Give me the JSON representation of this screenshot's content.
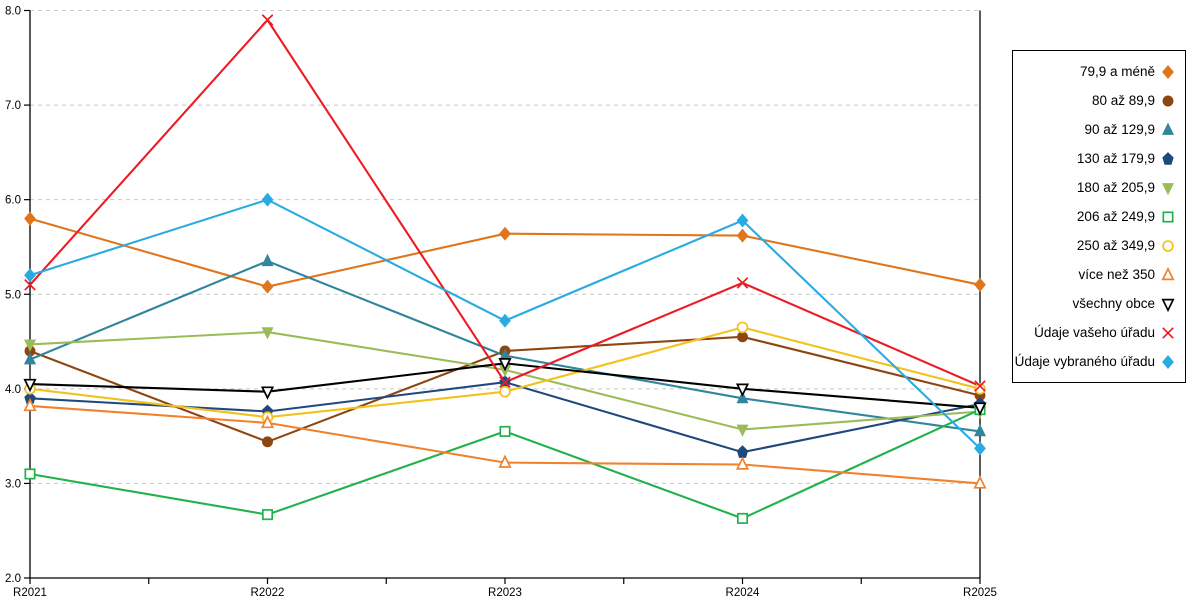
{
  "chart_data": {
    "type": "line",
    "title": "",
    "xlabel": "",
    "ylabel": "",
    "categories": [
      "R2021",
      "R2022",
      "R2023",
      "R2024",
      "R2025"
    ],
    "ylim": [
      2.0,
      8.0
    ],
    "ytick_labels": [
      "2.0",
      "3.0",
      "4.0",
      "5.0",
      "6.0",
      "7.0",
      "8.0"
    ],
    "grid": true,
    "legend_position": "right",
    "series": [
      {
        "name": "79,9 a méně",
        "color": "#E0751C",
        "marker": "diamond",
        "filled": true,
        "values": [
          5.8,
          5.08,
          5.64,
          5.62,
          5.1
        ]
      },
      {
        "name": "80 až 89,9",
        "color": "#8E4611",
        "marker": "circle",
        "filled": true,
        "values": [
          4.4,
          3.44,
          4.4,
          4.55,
          3.93
        ]
      },
      {
        "name": "90 až 129,9",
        "color": "#31859C",
        "marker": "triangle-up",
        "filled": true,
        "values": [
          4.31,
          5.35,
          4.35,
          3.9,
          3.55
        ]
      },
      {
        "name": "130 až 179,9",
        "color": "#1F497D",
        "marker": "pentagon",
        "filled": true,
        "values": [
          3.9,
          3.76,
          4.07,
          3.33,
          3.84
        ]
      },
      {
        "name": "180 až 205,9",
        "color": "#9BBB59",
        "marker": "triangle-down",
        "filled": true,
        "values": [
          4.47,
          4.6,
          4.2,
          3.57,
          3.76
        ]
      },
      {
        "name": "206 až 249,9",
        "color": "#22B14C",
        "marker": "square",
        "filled": false,
        "values": [
          3.1,
          2.67,
          3.55,
          2.63,
          3.78
        ]
      },
      {
        "name": "250 až 349,9",
        "color": "#F3C11B",
        "marker": "circle",
        "filled": false,
        "values": [
          4.0,
          3.7,
          3.97,
          4.65,
          4.0
        ]
      },
      {
        "name": "více než 350",
        "color": "#F0822D",
        "marker": "triangle-up",
        "filled": false,
        "values": [
          3.82,
          3.64,
          3.22,
          3.2,
          3.0
        ]
      },
      {
        "name": "všechny obce",
        "color": "#000000",
        "marker": "triangle-down",
        "filled": false,
        "values": [
          4.05,
          3.97,
          4.27,
          4.0,
          3.8
        ]
      },
      {
        "name": "Údaje vašeho úřadu",
        "color": "#ED1C24",
        "marker": "x",
        "filled": false,
        "values": [
          5.1,
          7.9,
          4.07,
          5.12,
          4.03
        ]
      },
      {
        "name": "Údaje vybraného úřadu",
        "color": "#29ABE2",
        "marker": "diamond",
        "filled": true,
        "values": [
          5.2,
          6.0,
          4.72,
          5.78,
          3.37
        ]
      }
    ]
  }
}
